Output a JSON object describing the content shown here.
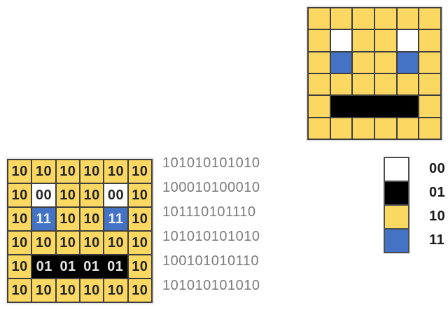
{
  "palette": {
    "grid_line": "#3f3e3c",
    "frame_border": "#e6e6e6",
    "binary_text": "#7b7b7b",
    "legend_text": "#1a1a1a"
  },
  "code_colors": {
    "00": {
      "bg": "#ffffff",
      "fg": "#262626"
    },
    "01": {
      "bg": "#000000",
      "fg": "#e6e6e6"
    },
    "10": {
      "bg": "#fbd862",
      "fg": "#262626"
    },
    "11": {
      "bg": "#4472c4",
      "fg": "#edf2fb"
    }
  },
  "grid_rows": [
    [
      {
        "c": "10"
      },
      {
        "c": "10"
      },
      {
        "c": "10"
      },
      {
        "c": "10"
      },
      {
        "c": "10"
      },
      {
        "c": "10"
      }
    ],
    [
      {
        "c": "10"
      },
      {
        "c": "00"
      },
      {
        "c": "10"
      },
      {
        "c": "10"
      },
      {
        "c": "00"
      },
      {
        "c": "10"
      }
    ],
    [
      {
        "c": "10"
      },
      {
        "c": "11"
      },
      {
        "c": "10"
      },
      {
        "c": "10"
      },
      {
        "c": "11"
      },
      {
        "c": "10"
      }
    ],
    [
      {
        "c": "10"
      },
      {
        "c": "10"
      },
      {
        "c": "10"
      },
      {
        "c": "10"
      },
      {
        "c": "10"
      },
      {
        "c": "10"
      }
    ],
    [
      {
        "c": "10"
      },
      {
        "c": "01",
        "span": 4,
        "labels": 4
      },
      {
        "c": "10"
      }
    ],
    [
      {
        "c": "10"
      },
      {
        "c": "10"
      },
      {
        "c": "10"
      },
      {
        "c": "10"
      },
      {
        "c": "10"
      },
      {
        "c": "10"
      }
    ]
  ],
  "binary_lines": [
    "101010101010",
    "100010100010",
    "101110101110",
    "101010101010",
    "100101010110",
    "101010101010"
  ],
  "legend_items": [
    {
      "code": "00",
      "label": "00"
    },
    {
      "code": "01",
      "label": "01"
    },
    {
      "code": "10",
      "label": "10"
    },
    {
      "code": "11",
      "label": "11"
    }
  ]
}
